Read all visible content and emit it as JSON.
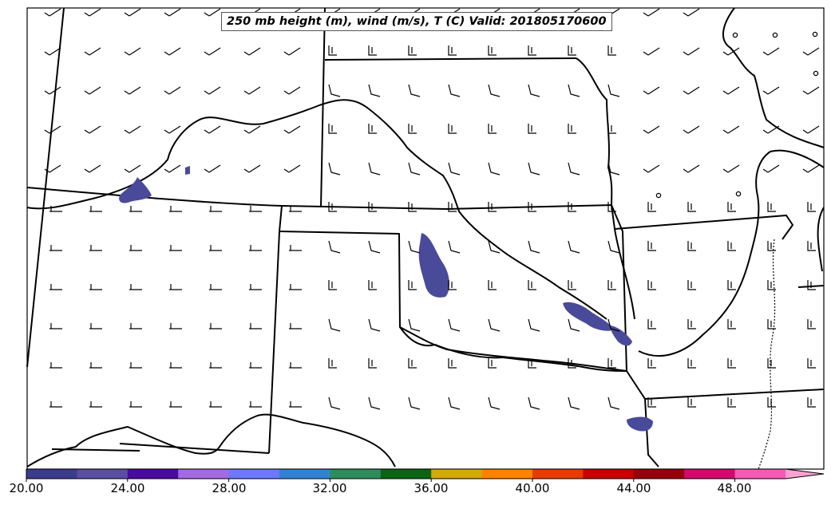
{
  "map": {
    "title": "250 mb height (m), wind (m/s), T (C) Valid: 201805170600"
  },
  "colorbar": {
    "ticks": [
      "20.00",
      "24.00",
      "28.00",
      "32.00",
      "36.00",
      "40.00",
      "44.00",
      "48.00"
    ],
    "colors": [
      "#3c3c8c",
      "#5a4ea0",
      "#4b0aa0",
      "#a46ae0",
      "#6e78ff",
      "#3282d2",
      "#2e8c5a",
      "#0a6414",
      "#d2aa0a",
      "#ff8200",
      "#e63c00",
      "#c80000",
      "#96000a",
      "#d20a6e",
      "#f55ab4",
      "#ffa0d2"
    ]
  }
}
